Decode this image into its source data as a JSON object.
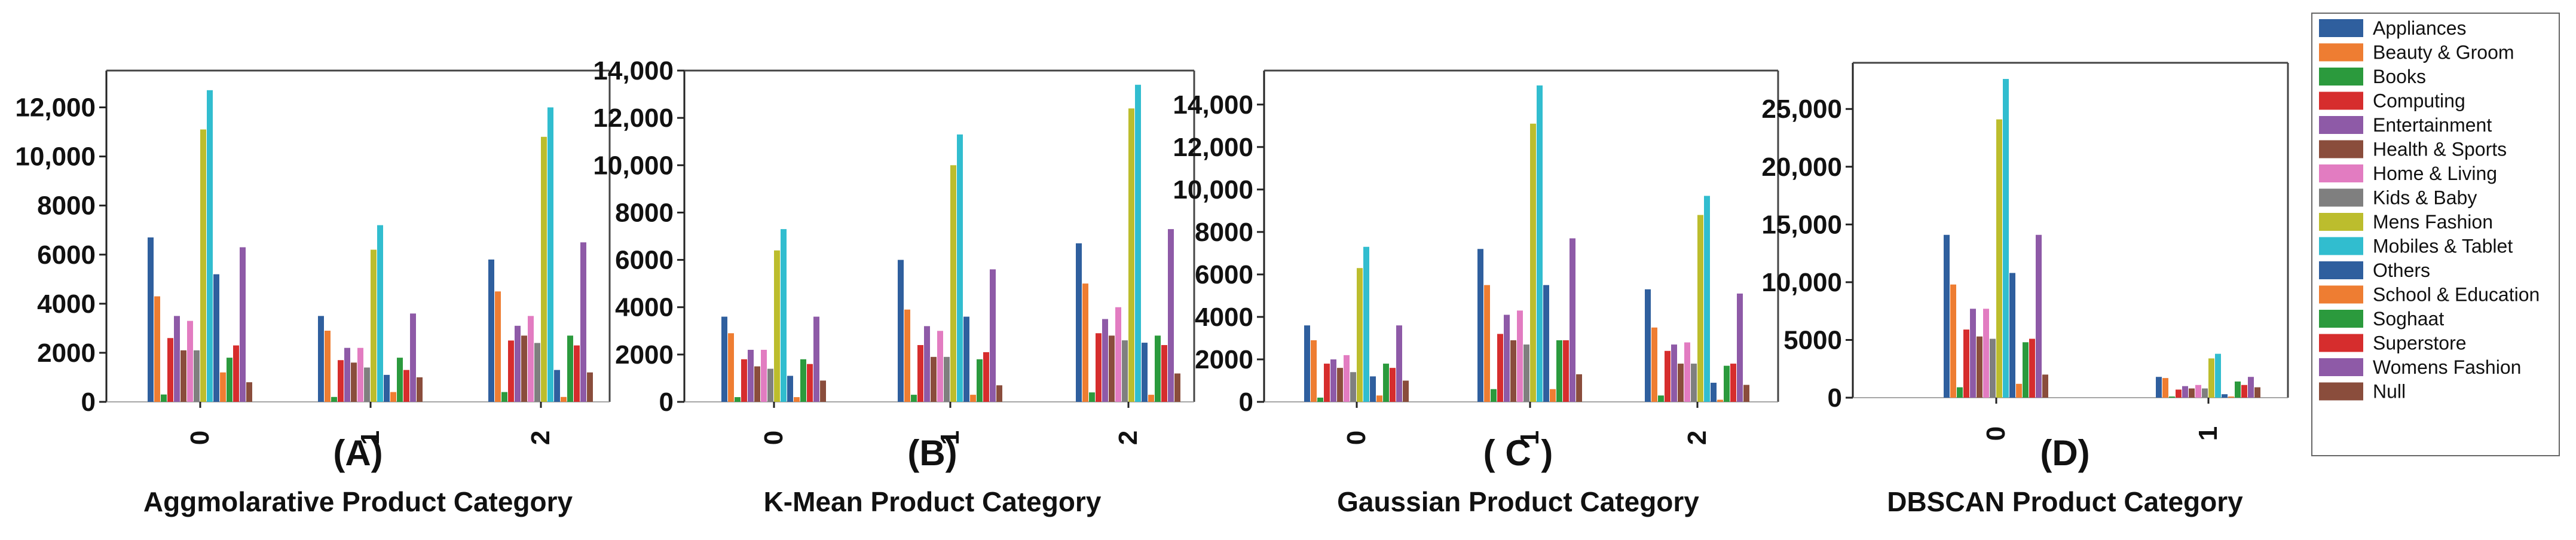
{
  "legend": [
    {
      "name": "Appliances",
      "color": "#2f5f9e"
    },
    {
      "name": "Beauty & Groom",
      "color": "#ee7d32"
    },
    {
      "name": "Books",
      "color": "#2b9a3d"
    },
    {
      "name": "Computing",
      "color": "#d62d2d"
    },
    {
      "name": "Entertainment",
      "color": "#8e5aa7"
    },
    {
      "name": "Health & Sports",
      "color": "#8a4d3c"
    },
    {
      "name": "Home & Living",
      "color": "#e27cc1"
    },
    {
      "name": "Kids & Baby",
      "color": "#7f7f7f"
    },
    {
      "name": "Mens Fashion",
      "color": "#bcbd2d"
    },
    {
      "name": "Mobiles & Tablet",
      "color": "#31bdcf"
    },
    {
      "name": "Others",
      "color": "#2f5f9e"
    },
    {
      "name": "School & Education",
      "color": "#ee7d32"
    },
    {
      "name": "Soghaat",
      "color": "#2b9a3d"
    },
    {
      "name": "Superstore",
      "color": "#d62d2d"
    },
    {
      "name": "Womens Fashion",
      "color": "#8e5aa7"
    },
    {
      "name": "Null",
      "color": "#8a4d3c"
    }
  ],
  "chart_data": [
    {
      "type": "bar",
      "panel_label": "(A)",
      "title": "Aggmolarative Product Category",
      "categories": [
        "0",
        "1",
        "2"
      ],
      "ylim": [
        0,
        13500
      ],
      "yticks": [
        0,
        2000,
        4000,
        6000,
        8000,
        10000,
        12000
      ],
      "ytick_labels": [
        "0",
        "2000",
        "4000",
        "6000",
        "8000",
        "10,000",
        "12,000"
      ],
      "values": [
        [
          6700,
          4300,
          300,
          2600,
          3500,
          2100,
          3300,
          2100,
          11100,
          12700,
          5200,
          1200,
          1800,
          2300,
          6300,
          800
        ],
        [
          3500,
          2900,
          200,
          1700,
          2200,
          1600,
          2200,
          1400,
          6200,
          7200,
          1100,
          400,
          1800,
          1300,
          3600,
          1000
        ],
        [
          5800,
          4500,
          400,
          2500,
          3100,
          2700,
          3500,
          2400,
          10800,
          12000,
          1300,
          200,
          2700,
          2300,
          6500,
          1200
        ]
      ]
    },
    {
      "type": "bar",
      "panel_label": "(B)",
      "title": "K-Mean Product Category",
      "categories": [
        "0",
        "1",
        "2"
      ],
      "ylim": [
        0,
        14000
      ],
      "yticks": [
        0,
        2000,
        4000,
        6000,
        8000,
        10000,
        12000,
        14000
      ],
      "ytick_labels": [
        "0",
        "2000",
        "4000",
        "6000",
        "8000",
        "10,000",
        "12,000",
        "14,000"
      ],
      "values": [
        [
          3600,
          2900,
          200,
          1800,
          2200,
          1500,
          2200,
          1400,
          6400,
          7300,
          1100,
          200,
          1800,
          1600,
          3600,
          900
        ],
        [
          6000,
          3900,
          300,
          2400,
          3200,
          1900,
          3000,
          1900,
          10000,
          11300,
          3600,
          300,
          1800,
          2100,
          5600,
          700
        ],
        [
          6700,
          5000,
          400,
          2900,
          3500,
          2800,
          4000,
          2600,
          12400,
          13400,
          2500,
          300,
          2800,
          2400,
          7300,
          1200
        ]
      ]
    },
    {
      "type": "bar",
      "panel_label": "( C )",
      "title": "Gaussian Product Category",
      "categories": [
        "0",
        "1",
        "2"
      ],
      "ylim": [
        0,
        15600
      ],
      "yticks": [
        0,
        2000,
        4000,
        6000,
        8000,
        10000,
        12000,
        14000
      ],
      "ytick_labels": [
        "0",
        "2000",
        "4000",
        "6000",
        "8000",
        "10,000",
        "12,000",
        "14,000"
      ],
      "values": [
        [
          3600,
          2900,
          200,
          1800,
          2000,
          1600,
          2200,
          1400,
          6300,
          7300,
          1200,
          300,
          1800,
          1600,
          3600,
          1000
        ],
        [
          7200,
          5500,
          600,
          3200,
          4100,
          2900,
          4300,
          2700,
          13100,
          14900,
          5500,
          600,
          2900,
          2900,
          7700,
          1300
        ],
        [
          5300,
          3500,
          300,
          2400,
          2700,
          1800,
          2800,
          1800,
          8800,
          9700,
          900,
          100,
          1700,
          1800,
          5100,
          800
        ]
      ]
    },
    {
      "type": "bar",
      "panel_label": "(D)",
      "title": "DBSCAN Product Category",
      "categories": [
        "0",
        "1"
      ],
      "ylim": [
        0,
        29000
      ],
      "yticks": [
        0,
        5000,
        10000,
        15000,
        20000,
        25000
      ],
      "ytick_labels": [
        "0",
        "5000",
        "10,000",
        "15,000",
        "20,000",
        "25,000"
      ],
      "values": [
        [
          14100,
          9800,
          900,
          5900,
          7700,
          5300,
          7700,
          5100,
          24100,
          27600,
          10800,
          1200,
          4800,
          5100,
          14100,
          2000
        ],
        [
          1800,
          1700,
          100,
          700,
          1000,
          800,
          1100,
          800,
          3400,
          3800,
          300,
          100,
          1400,
          1100,
          1800,
          900
        ]
      ]
    }
  ]
}
